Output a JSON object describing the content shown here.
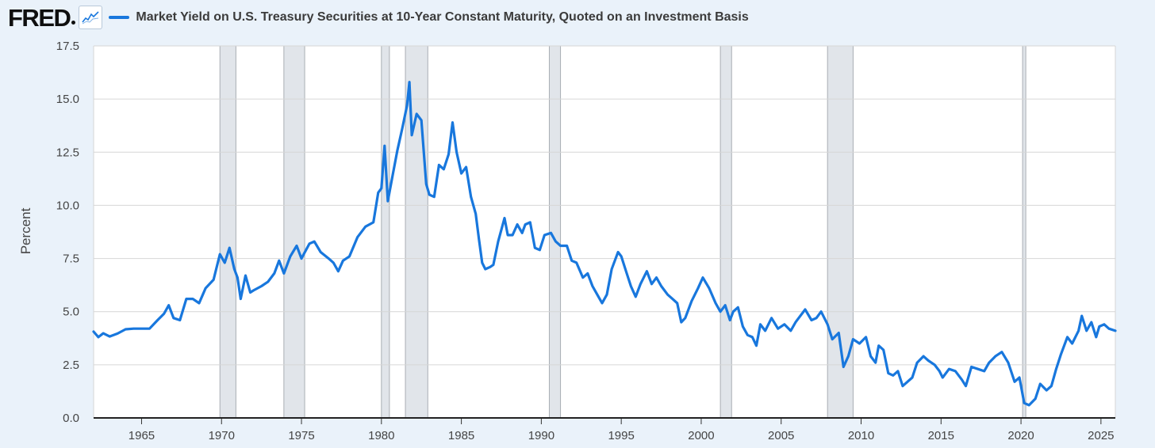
{
  "header": {
    "logo_text": "FRED",
    "series_title": "Market Yield on U.S. Treasury Securities at 10-Year Constant Maturity, Quoted on an Investment Basis",
    "line_color": "#1877dd"
  },
  "chart_data": {
    "type": "line",
    "title": "Market Yield on U.S. Treasury Securities at 10-Year Constant Maturity, Quoted on an Investment Basis",
    "xlabel": "",
    "ylabel": "Percent",
    "xlim": [
      1962.0,
      2025.9
    ],
    "ylim": [
      0,
      17.5
    ],
    "x_ticks": [
      1965,
      1970,
      1975,
      1980,
      1985,
      1990,
      1995,
      2000,
      2005,
      2010,
      2015,
      2020,
      2025
    ],
    "y_ticks": [
      {
        "value": 0,
        "label": "0.0"
      },
      {
        "value": 2.5,
        "label": "2.5"
      },
      {
        "value": 5,
        "label": "5.0"
      },
      {
        "value": 7.5,
        "label": "7.5"
      },
      {
        "value": 10,
        "label": "10.0"
      },
      {
        "value": 12.5,
        "label": "12.5"
      },
      {
        "value": 15,
        "label": "15.0"
      },
      {
        "value": 17.5,
        "label": "17.5"
      }
    ],
    "recessions": [
      [
        1969.9,
        1970.9
      ],
      [
        1973.9,
        1975.2
      ],
      [
        1980.0,
        1980.5
      ],
      [
        1981.5,
        1982.9
      ],
      [
        1990.5,
        1991.2
      ],
      [
        2001.2,
        2001.9
      ],
      [
        2007.9,
        2009.5
      ],
      [
        2020.1,
        2020.3
      ]
    ],
    "series": [
      {
        "name": "DGS10",
        "color": "#1877dd",
        "points": [
          [
            1962.0,
            4.06
          ],
          [
            1962.3,
            3.8
          ],
          [
            1962.6,
            3.98
          ],
          [
            1963.0,
            3.83
          ],
          [
            1963.5,
            3.97
          ],
          [
            1964.0,
            4.17
          ],
          [
            1964.5,
            4.2
          ],
          [
            1965.0,
            4.2
          ],
          [
            1965.5,
            4.2
          ],
          [
            1966.0,
            4.6
          ],
          [
            1966.4,
            4.9
          ],
          [
            1966.7,
            5.3
          ],
          [
            1967.0,
            4.7
          ],
          [
            1967.4,
            4.6
          ],
          [
            1967.8,
            5.6
          ],
          [
            1968.2,
            5.6
          ],
          [
            1968.6,
            5.4
          ],
          [
            1969.0,
            6.1
          ],
          [
            1969.5,
            6.5
          ],
          [
            1969.9,
            7.7
          ],
          [
            1970.2,
            7.3
          ],
          [
            1970.5,
            8.0
          ],
          [
            1970.8,
            7.0
          ],
          [
            1971.0,
            6.6
          ],
          [
            1971.2,
            5.6
          ],
          [
            1971.5,
            6.7
          ],
          [
            1971.8,
            5.9
          ],
          [
            1972.0,
            6.0
          ],
          [
            1972.5,
            6.2
          ],
          [
            1972.9,
            6.4
          ],
          [
            1973.3,
            6.8
          ],
          [
            1973.6,
            7.4
          ],
          [
            1973.9,
            6.8
          ],
          [
            1974.3,
            7.6
          ],
          [
            1974.7,
            8.1
          ],
          [
            1975.0,
            7.5
          ],
          [
            1975.5,
            8.2
          ],
          [
            1975.8,
            8.3
          ],
          [
            1976.2,
            7.8
          ],
          [
            1976.7,
            7.5
          ],
          [
            1977.0,
            7.3
          ],
          [
            1977.3,
            6.9
          ],
          [
            1977.6,
            7.4
          ],
          [
            1978.0,
            7.6
          ],
          [
            1978.5,
            8.5
          ],
          [
            1979.0,
            9.0
          ],
          [
            1979.5,
            9.2
          ],
          [
            1979.8,
            10.6
          ],
          [
            1980.0,
            10.8
          ],
          [
            1980.2,
            12.8
          ],
          [
            1980.4,
            10.2
          ],
          [
            1980.7,
            11.4
          ],
          [
            1981.0,
            12.6
          ],
          [
            1981.3,
            13.6
          ],
          [
            1981.6,
            14.7
          ],
          [
            1981.75,
            15.8
          ],
          [
            1981.9,
            13.3
          ],
          [
            1982.2,
            14.3
          ],
          [
            1982.5,
            14.0
          ],
          [
            1982.8,
            11.0
          ],
          [
            1983.0,
            10.5
          ],
          [
            1983.3,
            10.4
          ],
          [
            1983.6,
            11.9
          ],
          [
            1983.9,
            11.7
          ],
          [
            1984.2,
            12.4
          ],
          [
            1984.45,
            13.9
          ],
          [
            1984.7,
            12.5
          ],
          [
            1985.0,
            11.5
          ],
          [
            1985.3,
            11.8
          ],
          [
            1985.6,
            10.4
          ],
          [
            1985.9,
            9.6
          ],
          [
            1986.1,
            8.4
          ],
          [
            1986.3,
            7.3
          ],
          [
            1986.5,
            7.0
          ],
          [
            1986.8,
            7.1
          ],
          [
            1987.0,
            7.2
          ],
          [
            1987.3,
            8.3
          ],
          [
            1987.7,
            9.4
          ],
          [
            1987.9,
            8.6
          ],
          [
            1988.2,
            8.6
          ],
          [
            1988.5,
            9.1
          ],
          [
            1988.8,
            8.7
          ],
          [
            1989.0,
            9.1
          ],
          [
            1989.3,
            9.2
          ],
          [
            1989.6,
            8.0
          ],
          [
            1989.9,
            7.9
          ],
          [
            1990.2,
            8.6
          ],
          [
            1990.6,
            8.7
          ],
          [
            1990.9,
            8.3
          ],
          [
            1991.2,
            8.1
          ],
          [
            1991.6,
            8.1
          ],
          [
            1991.9,
            7.4
          ],
          [
            1992.2,
            7.3
          ],
          [
            1992.6,
            6.6
          ],
          [
            1992.9,
            6.8
          ],
          [
            1993.2,
            6.2
          ],
          [
            1993.5,
            5.8
          ],
          [
            1993.8,
            5.4
          ],
          [
            1994.1,
            5.8
          ],
          [
            1994.4,
            7.0
          ],
          [
            1994.8,
            7.8
          ],
          [
            1995.0,
            7.6
          ],
          [
            1995.3,
            6.9
          ],
          [
            1995.6,
            6.2
          ],
          [
            1995.9,
            5.7
          ],
          [
            1996.2,
            6.3
          ],
          [
            1996.6,
            6.9
          ],
          [
            1996.9,
            6.3
          ],
          [
            1997.2,
            6.6
          ],
          [
            1997.5,
            6.2
          ],
          [
            1997.9,
            5.8
          ],
          [
            1998.2,
            5.6
          ],
          [
            1998.5,
            5.4
          ],
          [
            1998.75,
            4.5
          ],
          [
            1999.0,
            4.7
          ],
          [
            1999.4,
            5.5
          ],
          [
            1999.8,
            6.1
          ],
          [
            2000.1,
            6.6
          ],
          [
            2000.5,
            6.1
          ],
          [
            2000.9,
            5.4
          ],
          [
            2001.2,
            5.0
          ],
          [
            2001.5,
            5.3
          ],
          [
            2001.8,
            4.6
          ],
          [
            2002.0,
            5.0
          ],
          [
            2002.3,
            5.2
          ],
          [
            2002.6,
            4.3
          ],
          [
            2002.9,
            3.9
          ],
          [
            2003.2,
            3.8
          ],
          [
            2003.45,
            3.4
          ],
          [
            2003.7,
            4.4
          ],
          [
            2004.0,
            4.1
          ],
          [
            2004.4,
            4.7
          ],
          [
            2004.8,
            4.2
          ],
          [
            2005.2,
            4.4
          ],
          [
            2005.6,
            4.1
          ],
          [
            2005.9,
            4.5
          ],
          [
            2006.2,
            4.8
          ],
          [
            2006.5,
            5.1
          ],
          [
            2006.9,
            4.6
          ],
          [
            2007.2,
            4.7
          ],
          [
            2007.5,
            5.0
          ],
          [
            2007.9,
            4.4
          ],
          [
            2008.2,
            3.7
          ],
          [
            2008.6,
            4.0
          ],
          [
            2008.9,
            2.4
          ],
          [
            2009.2,
            2.9
          ],
          [
            2009.5,
            3.7
          ],
          [
            2009.9,
            3.5
          ],
          [
            2010.3,
            3.8
          ],
          [
            2010.6,
            2.9
          ],
          [
            2010.9,
            2.6
          ],
          [
            2011.1,
            3.4
          ],
          [
            2011.4,
            3.2
          ],
          [
            2011.7,
            2.1
          ],
          [
            2012.0,
            2.0
          ],
          [
            2012.3,
            2.2
          ],
          [
            2012.6,
            1.5
          ],
          [
            2012.9,
            1.7
          ],
          [
            2013.2,
            1.9
          ],
          [
            2013.5,
            2.6
          ],
          [
            2013.9,
            2.9
          ],
          [
            2014.2,
            2.7
          ],
          [
            2014.6,
            2.5
          ],
          [
            2014.9,
            2.2
          ],
          [
            2015.1,
            1.9
          ],
          [
            2015.5,
            2.3
          ],
          [
            2015.9,
            2.2
          ],
          [
            2016.3,
            1.8
          ],
          [
            2016.55,
            1.5
          ],
          [
            2016.9,
            2.4
          ],
          [
            2017.3,
            2.3
          ],
          [
            2017.7,
            2.2
          ],
          [
            2018.0,
            2.6
          ],
          [
            2018.4,
            2.9
          ],
          [
            2018.8,
            3.1
          ],
          [
            2019.2,
            2.6
          ],
          [
            2019.6,
            1.7
          ],
          [
            2019.9,
            1.9
          ],
          [
            2020.2,
            0.7
          ],
          [
            2020.5,
            0.6
          ],
          [
            2020.9,
            0.9
          ],
          [
            2021.2,
            1.6
          ],
          [
            2021.6,
            1.3
          ],
          [
            2021.9,
            1.5
          ],
          [
            2022.2,
            2.3
          ],
          [
            2022.5,
            3.0
          ],
          [
            2022.9,
            3.8
          ],
          [
            2023.2,
            3.5
          ],
          [
            2023.6,
            4.1
          ],
          [
            2023.8,
            4.8
          ],
          [
            2024.1,
            4.1
          ],
          [
            2024.4,
            4.5
          ],
          [
            2024.7,
            3.8
          ],
          [
            2024.9,
            4.3
          ],
          [
            2025.2,
            4.4
          ],
          [
            2025.5,
            4.2
          ],
          [
            2025.9,
            4.1
          ]
        ]
      }
    ]
  }
}
